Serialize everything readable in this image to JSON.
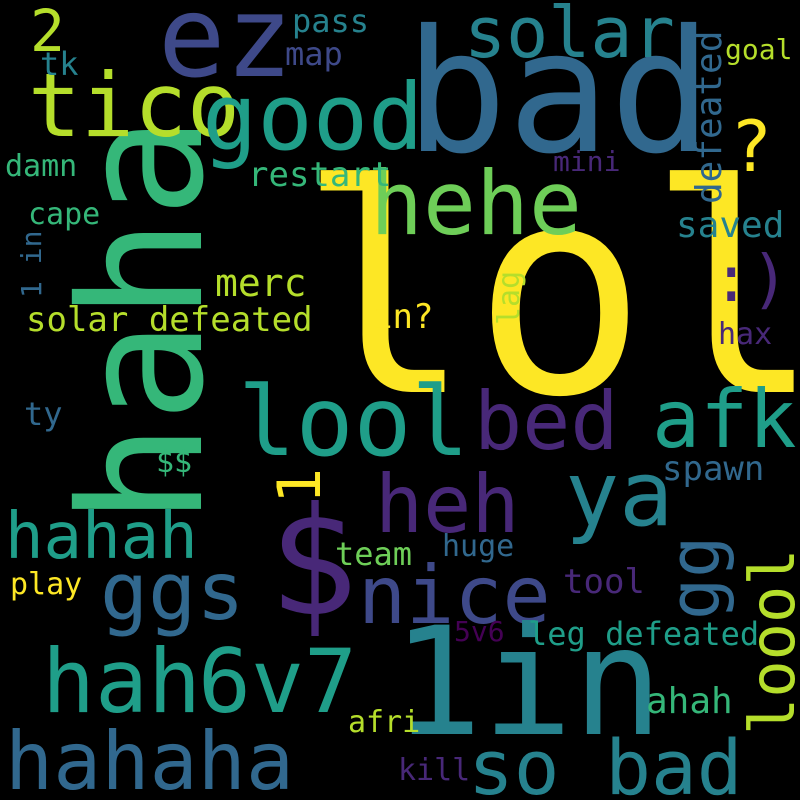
{
  "palette": {
    "yellow": "#fde725",
    "lime": "#b5de2b",
    "lightgreen": "#6ece58",
    "green": "#35b779",
    "teal": "#1f9e89",
    "cyan": "#26828e",
    "blue": "#31688e",
    "indigo": "#3e4989",
    "purple": "#482878",
    "darkpurple": "#440154"
  },
  "words": [
    {
      "id": "lol",
      "text": "lol"
    },
    {
      "id": "bad",
      "text": "bad"
    },
    {
      "id": "haha",
      "text": "haha"
    },
    {
      "id": "ez",
      "text": "ez"
    },
    {
      "id": "tico",
      "text": "tico"
    },
    {
      "id": "good",
      "text": "good"
    },
    {
      "id": "solar",
      "text": "solar"
    },
    {
      "id": "two",
      "text": "2"
    },
    {
      "id": "pass",
      "text": "pass"
    },
    {
      "id": "map",
      "text": "map"
    },
    {
      "id": "tk",
      "text": "tk"
    },
    {
      "id": "goal",
      "text": "goal"
    },
    {
      "id": "defeated-v",
      "text": "defeated"
    },
    {
      "id": "question",
      "text": "?"
    },
    {
      "id": "hehe",
      "text": "hehe"
    },
    {
      "id": "mini",
      "text": "mini"
    },
    {
      "id": "damn",
      "text": "damn"
    },
    {
      "id": "restart",
      "text": "restart"
    },
    {
      "id": "cape",
      "text": "cape"
    },
    {
      "id": "saved",
      "text": "saved"
    },
    {
      "id": "one-in-v",
      "text": "1 in"
    },
    {
      "id": "smiley",
      "text": ":)"
    },
    {
      "id": "merc",
      "text": "merc"
    },
    {
      "id": "solar-defeated",
      "text": "solar defeated"
    },
    {
      "id": "in-q",
      "text": "in?"
    },
    {
      "id": "lag",
      "text": "lag"
    },
    {
      "id": "hax",
      "text": "hax"
    },
    {
      "id": "lool",
      "text": "lool"
    },
    {
      "id": "bed",
      "text": "bed"
    },
    {
      "id": "afk",
      "text": "afk"
    },
    {
      "id": "ty",
      "text": "ty"
    },
    {
      "id": "heh",
      "text": "heh"
    },
    {
      "id": "ya",
      "text": "ya"
    },
    {
      "id": "dollars",
      "text": "$$"
    },
    {
      "id": "spawn",
      "text": "spawn"
    },
    {
      "id": "one",
      "text": "1"
    },
    {
      "id": "hahah",
      "text": "hahah"
    },
    {
      "id": "gg",
      "text": "gg"
    },
    {
      "id": "dollar",
      "text": "$"
    },
    {
      "id": "team",
      "text": "team"
    },
    {
      "id": "huge",
      "text": "huge"
    },
    {
      "id": "ggs",
      "text": "ggs"
    },
    {
      "id": "nice",
      "text": "nice"
    },
    {
      "id": "loool",
      "text": "loool"
    },
    {
      "id": "play",
      "text": "play"
    },
    {
      "id": "tool",
      "text": "tool"
    },
    {
      "id": "one-in",
      "text": "1in"
    },
    {
      "id": "hah",
      "text": "hah"
    },
    {
      "id": "six-v-seven",
      "text": "6v7"
    },
    {
      "id": "five-v-six",
      "text": "5v6"
    },
    {
      "id": "leg-defeated",
      "text": "leg defeated"
    },
    {
      "id": "ahah",
      "text": "ahah"
    },
    {
      "id": "afri",
      "text": "afri"
    },
    {
      "id": "hahaha",
      "text": "hahaha"
    },
    {
      "id": "so-bad",
      "text": "so bad"
    },
    {
      "id": "kill",
      "text": "kill"
    }
  ]
}
